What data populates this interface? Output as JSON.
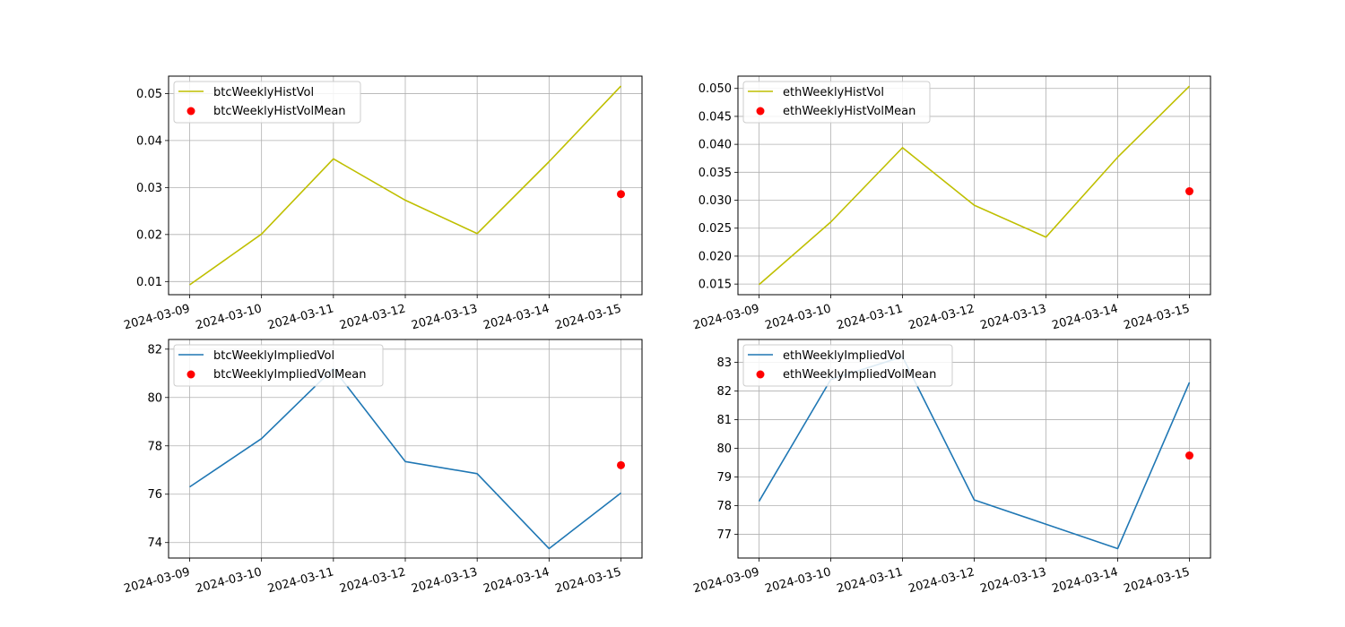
{
  "chart_data": [
    {
      "type": "line",
      "x": [
        "2024-03-09",
        "2024-03-10",
        "2024-03-11",
        "2024-03-12",
        "2024-03-13",
        "2024-03-14",
        "2024-03-15"
      ],
      "series": [
        {
          "name": "btcWeeklyHistVol",
          "kind": "line",
          "color": "#bfbf00",
          "values": [
            0.0093,
            0.0201,
            0.0361,
            0.0273,
            0.0202,
            0.0355,
            0.0516
          ]
        },
        {
          "name": "btcWeeklyHistVolMean",
          "kind": "scatter",
          "color": "#ff0000",
          "points": [
            {
              "x": "2024-03-15",
              "y": 0.0286
            }
          ]
        }
      ],
      "ylim": [
        0.0072,
        0.0537
      ],
      "yticks": [
        "0.01",
        "0.02",
        "0.03",
        "0.04",
        "0.05"
      ],
      "title": "",
      "xlabel": "",
      "ylabel": "",
      "grid": true,
      "legend": "upper-left"
    },
    {
      "type": "line",
      "x": [
        "2024-03-09",
        "2024-03-10",
        "2024-03-11",
        "2024-03-12",
        "2024-03-13",
        "2024-03-14",
        "2024-03-15"
      ],
      "series": [
        {
          "name": "ethWeeklyHistVol",
          "kind": "line",
          "color": "#bfbf00",
          "values": [
            0.0149,
            0.0261,
            0.0394,
            0.0291,
            0.0234,
            0.0377,
            0.0504
          ]
        },
        {
          "name": "ethWeeklyHistVolMean",
          "kind": "scatter",
          "color": "#ff0000",
          "points": [
            {
              "x": "2024-03-15",
              "y": 0.0316
            }
          ]
        }
      ],
      "ylim": [
        0.0131,
        0.0522
      ],
      "yticks": [
        "0.015",
        "0.020",
        "0.025",
        "0.030",
        "0.035",
        "0.040",
        "0.045",
        "0.050"
      ],
      "title": "",
      "xlabel": "",
      "ylabel": "",
      "grid": true,
      "legend": "upper-left"
    },
    {
      "type": "line",
      "x": [
        "2024-03-09",
        "2024-03-10",
        "2024-03-11",
        "2024-03-12",
        "2024-03-13",
        "2024-03-14",
        "2024-03-15"
      ],
      "series": [
        {
          "name": "btcWeeklyImpliedVol",
          "kind": "line",
          "color": "#1f77b4",
          "values": [
            76.3,
            78.3,
            81.2,
            77.35,
            76.85,
            73.75,
            76.05
          ]
        },
        {
          "name": "btcWeeklyImpliedVolMean",
          "kind": "scatter",
          "color": "#ff0000",
          "points": [
            {
              "x": "2024-03-15",
              "y": 77.2
            }
          ]
        }
      ],
      "ylim": [
        73.36,
        82.4
      ],
      "yticks": [
        "74",
        "76",
        "78",
        "80",
        "82"
      ],
      "title": "",
      "xlabel": "",
      "ylabel": "",
      "grid": true,
      "legend": "upper-left"
    },
    {
      "type": "line",
      "x": [
        "2024-03-09",
        "2024-03-10",
        "2024-03-11",
        "2024-03-12",
        "2024-03-13",
        "2024-03-14",
        "2024-03-15"
      ],
      "series": [
        {
          "name": "ethWeeklyImpliedVol",
          "kind": "line",
          "color": "#1f77b4",
          "values": [
            78.15,
            82.4,
            83.2,
            78.2,
            77.35,
            76.5,
            82.3
          ]
        },
        {
          "name": "ethWeeklyImpliedVolMean",
          "kind": "scatter",
          "color": "#ff0000",
          "points": [
            {
              "x": "2024-03-15",
              "y": 79.75
            }
          ]
        }
      ],
      "ylim": [
        76.17,
        83.8
      ],
      "yticks": [
        "77",
        "78",
        "79",
        "80",
        "81",
        "82",
        "83"
      ],
      "title": "",
      "xlabel": "",
      "ylabel": "",
      "grid": true,
      "legend": "upper-left"
    }
  ]
}
